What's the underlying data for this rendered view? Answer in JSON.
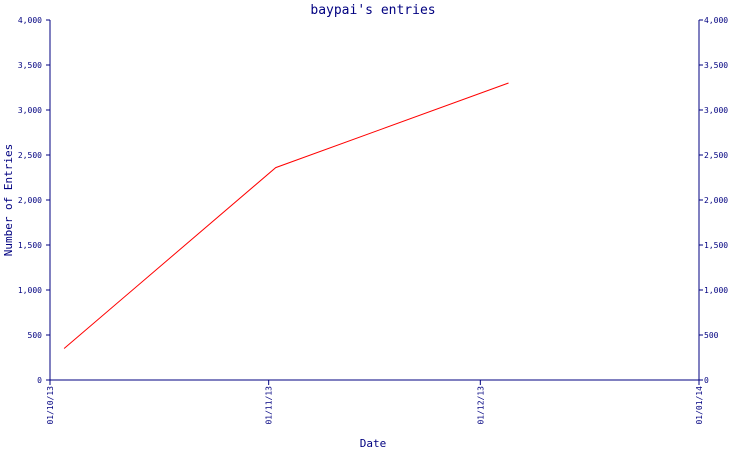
{
  "chart_data": {
    "type": "line",
    "title": "baypai's entries",
    "xlabel": "Date",
    "ylabel": "Number of Entries",
    "x_tick_labels": [
      "01/10/13",
      "01/11/13",
      "01/12/13",
      "01/01/14"
    ],
    "x_ticks": [
      "2013-10-01",
      "2013-11-01",
      "2013-12-01",
      "2014-01-01"
    ],
    "xlim": [
      "2013-10-01",
      "2014-01-01"
    ],
    "y_tick_labels": [
      "0",
      "500",
      "1,000",
      "1,500",
      "2,000",
      "2,500",
      "3,000",
      "3,500",
      "4,000"
    ],
    "y_ticks": [
      0,
      500,
      1000,
      1500,
      2000,
      2500,
      3000,
      3500,
      4000
    ],
    "ylim": [
      0,
      4000
    ],
    "right_axis_mirrored": true,
    "grid": false,
    "series": [
      {
        "color": "#ff0000",
        "points": [
          {
            "x": "2013-10-03",
            "y": 350
          },
          {
            "x": "2013-11-02",
            "y": 2360
          },
          {
            "x": "2013-12-05",
            "y": 3300
          }
        ]
      }
    ]
  }
}
